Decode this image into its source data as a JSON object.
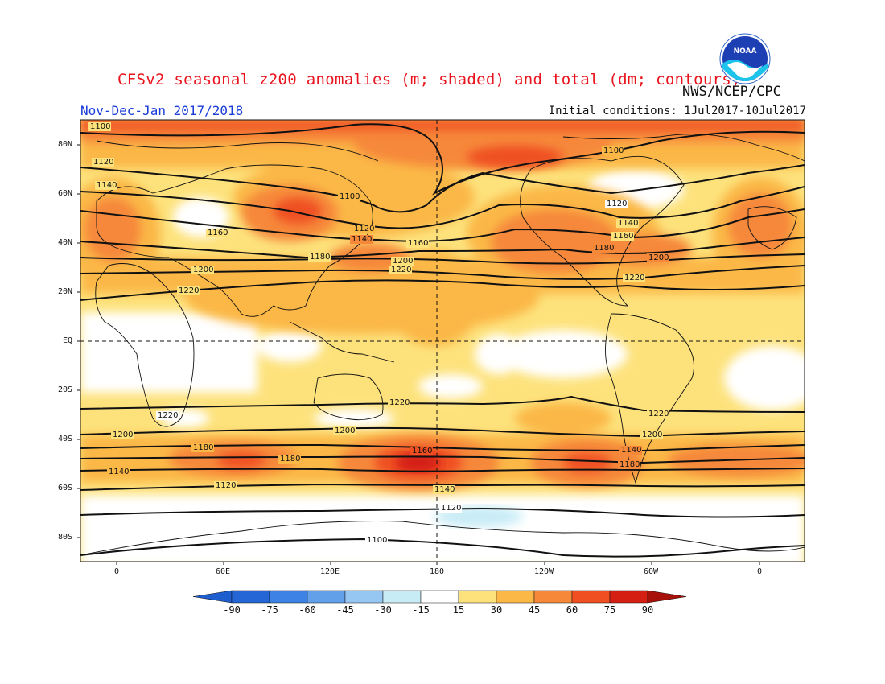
{
  "title": "CFSv2 seasonal z200 anomalies (m; shaded) and total (dm; contours)",
  "season": "Nov-Dec-Jan 2017/2018",
  "initial_conditions": "Initial conditions: 1Jul2017-10Jul2017",
  "agency": "NWS/NCEP/CPC",
  "logo_text": "NOAA",
  "colors": {
    "title": "#e8141e",
    "season": "#1a3cd8",
    "contour": "#111111"
  },
  "lat_labels": [
    "80N",
    "60N",
    "40N",
    "20N",
    "EQ",
    "20S",
    "40S",
    "60S",
    "80S"
  ],
  "lon_labels": [
    "0",
    "60E",
    "120E",
    "180",
    "120W",
    "60W",
    "0"
  ],
  "colorbar": {
    "labels": [
      "-90",
      "-75",
      "-60",
      "-45",
      "-30",
      "-15",
      "15",
      "30",
      "45",
      "60",
      "75",
      "90"
    ],
    "colors": [
      "#2466d6",
      "#3d82e4",
      "#62a0ea",
      "#96c6f2",
      "#c8ecf6",
      "#ffffff",
      "#fde27c",
      "#fbb847",
      "#f6883a",
      "#ef4f21",
      "#d41f12"
    ],
    "low_arrow": "#1f5ecf",
    "high_arrow": "#a8100a"
  },
  "contour_labels": [
    "1100",
    "1120",
    "1140",
    "1160",
    "1180",
    "1200",
    "1220",
    "1220",
    "1200",
    "1180",
    "1140",
    "1120",
    "1100",
    "1120",
    "1140",
    "1160",
    "1180",
    "1200",
    "1220",
    "1100",
    "1120",
    "1140",
    "1160",
    "1180",
    "1200",
    "1220",
    "1220",
    "1200",
    "1180",
    "1160",
    "1180",
    "1140",
    "1120",
    "1100",
    "1100"
  ]
}
